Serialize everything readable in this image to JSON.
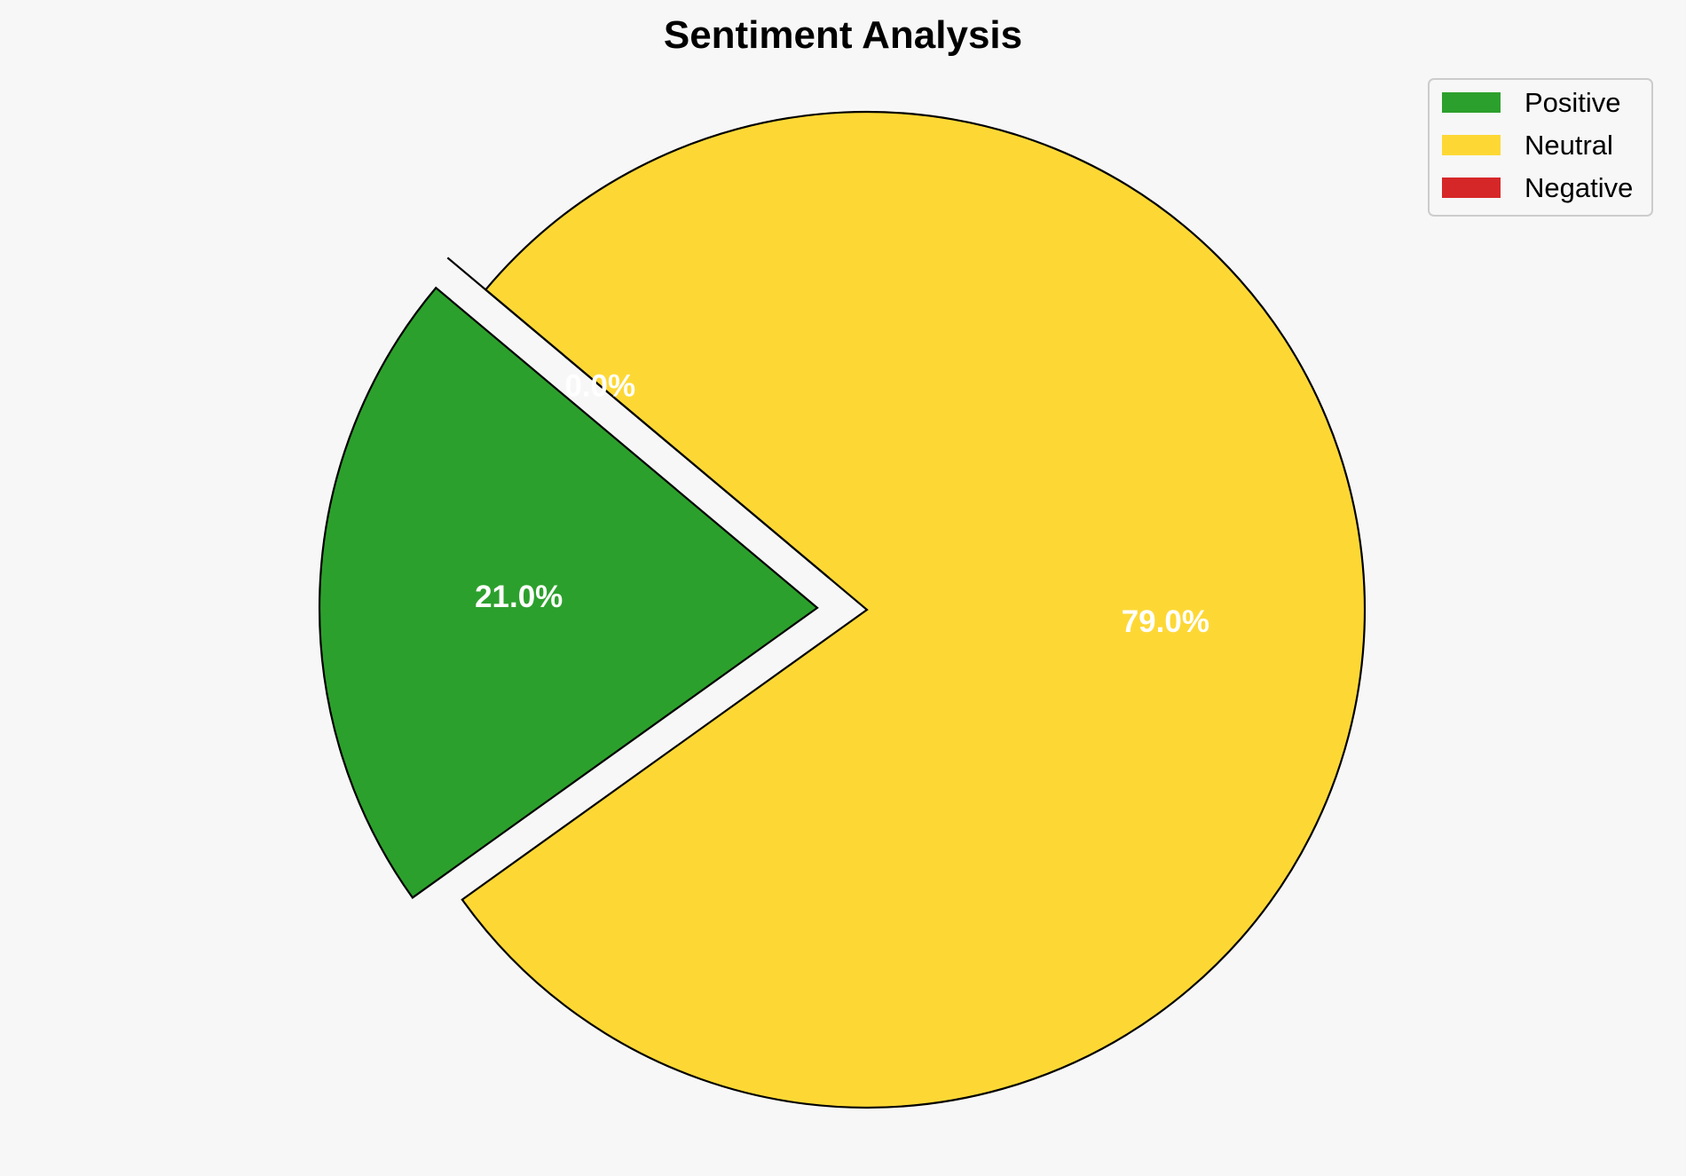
{
  "chart_data": {
    "type": "pie",
    "title": "Sentiment Analysis",
    "categories": [
      "Positive",
      "Neutral",
      "Negative"
    ],
    "values": [
      21.0,
      79.0,
      0.0
    ],
    "value_labels": [
      "21.0%",
      "79.0%",
      "0.0%"
    ],
    "colors": [
      "#2ca02c",
      "#fdd835",
      "#d62728"
    ],
    "exploded": [
      "Positive",
      "Negative"
    ],
    "legend": {
      "placement": "top-right",
      "entries": [
        "Positive",
        "Neutral",
        "Negative"
      ]
    }
  }
}
